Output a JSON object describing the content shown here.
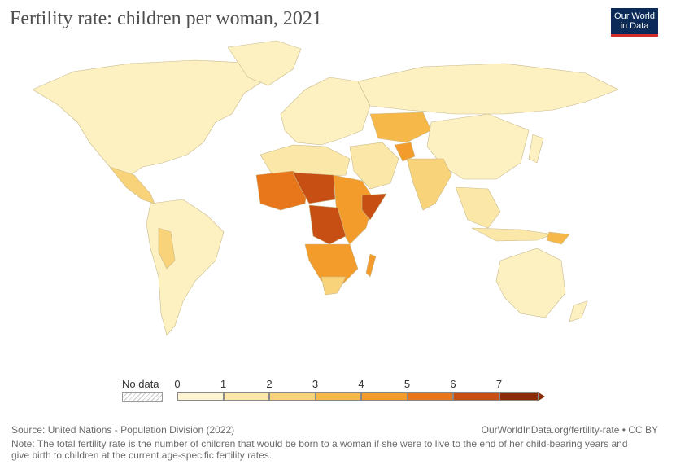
{
  "header": {
    "title": "Fertility rate: children per woman, 2021",
    "logo_line1": "Our World",
    "logo_line2": "in Data"
  },
  "legend": {
    "nodata_label": "No data",
    "ticks": [
      "0",
      "1",
      "2",
      "3",
      "4",
      "5",
      "6",
      "7"
    ],
    "colors": [
      "#fdf5d2",
      "#fbe8a8",
      "#f9d37a",
      "#f7b84a",
      "#f39c2c",
      "#e8761b",
      "#c74f13",
      "#8c2d0a"
    ]
  },
  "footer": {
    "source": "Source: United Nations - Population Division (2022)",
    "url": "OurWorldInData.org/fertility-rate • CC BY",
    "note_line1": "Note: The total fertility rate is the number of children that would be born to a woman if she were to live to the end of her child-bearing years and",
    "note_line2": "give birth to children at the current age-specific fertility rates."
  }
}
